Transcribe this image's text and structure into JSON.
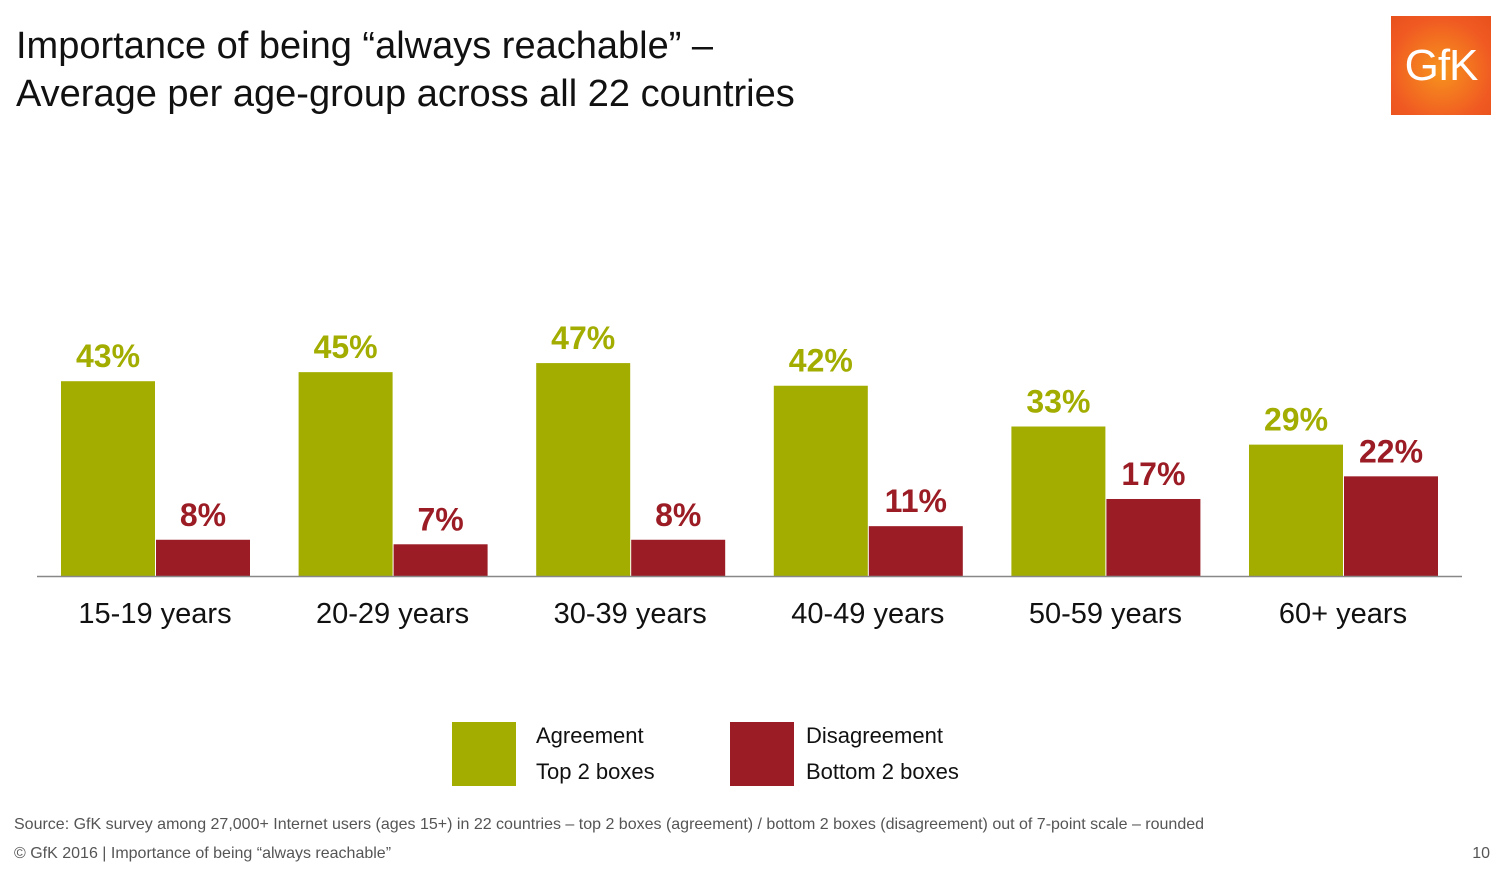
{
  "title_line1": "Importance of being “always reachable” –",
  "title_line2": "Average per age-group across all 22 countries",
  "logo_text": "GfK",
  "chart_data": {
    "type": "bar",
    "categories": [
      "15-19 years",
      "20-29 years",
      "30-39 years",
      "40-49 years",
      "50-59 years",
      "60+ years"
    ],
    "series": [
      {
        "name": "Agreement Top 2 boxes",
        "values": [
          43,
          45,
          47,
          42,
          33,
          29
        ],
        "color": "#a2ad00"
      },
      {
        "name": "Disagreement Bottom 2 boxes",
        "values": [
          8,
          7,
          8,
          11,
          17,
          22
        ],
        "color": "#9b1c24"
      }
    ],
    "value_suffix": "%",
    "grid": false,
    "y_axis_visible": false,
    "legend_position": "bottom"
  },
  "legend": [
    {
      "line1": "Agreement",
      "line2": "Top 2 boxes"
    },
    {
      "line1": "Disagreement",
      "line2": "Bottom 2 boxes"
    }
  ],
  "source": "Source: GfK survey among 27,000+ Internet users (ages 15+) in 22 countries – top 2 boxes (agreement) / bottom 2 boxes (disagreement) out of 7-point scale – rounded",
  "footer": "© GfK 2016 | Importance of being “always reachable”",
  "page_number": "10"
}
